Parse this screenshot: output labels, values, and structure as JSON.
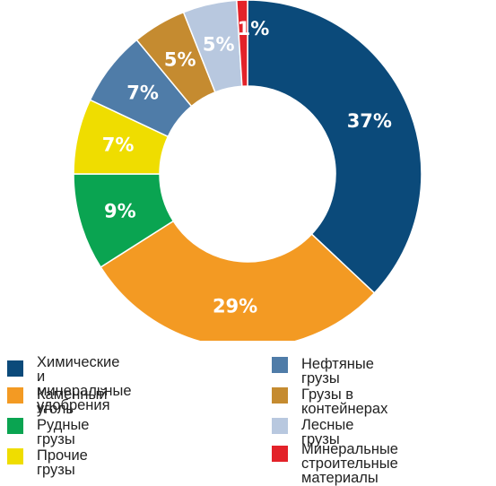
{
  "chart_data": {
    "type": "pie",
    "donut": true,
    "slices": [
      {
        "name": "Химические\nи минеральные удобрения",
        "value": 37,
        "label": "37%",
        "color": "#0b4a7a"
      },
      {
        "name": "Каменный уголь",
        "value": 29,
        "label": "29%",
        "color": "#f39a23"
      },
      {
        "name": "Рудные грузы",
        "value": 9,
        "label": "9%",
        "color": "#0aa451"
      },
      {
        "name": "Прочие грузы",
        "value": 7,
        "label": "7%",
        "color": "#efdd00"
      },
      {
        "name": "Нефтяные грузы",
        "value": 7,
        "label": "7%",
        "color": "#4f7ca8"
      },
      {
        "name": "Грузы в контейнерах",
        "value": 5,
        "label": "5%",
        "color": "#c58b30"
      },
      {
        "name": "Лесные грузы",
        "value": 5,
        "label": "5%",
        "color": "#b8c8df"
      },
      {
        "name": "Минеральные\nстроительные материалы",
        "value": 1,
        "label": "1%",
        "color": "#e32229"
      }
    ],
    "legend_position": "bottom"
  }
}
